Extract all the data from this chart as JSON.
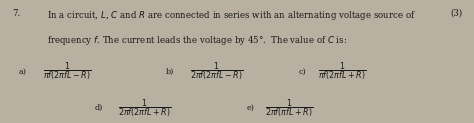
{
  "question_number": "7.",
  "question_line1": "In a circuit, $L$, $C$ and $R$ are connected in series with an alternating voltage source of",
  "question_line2": "frequency $f$. The current leads the voltage by 45°.  The value of $C$ is:",
  "marks": "(3)",
  "options": [
    {
      "label": "a)",
      "expr": "$\\dfrac{1}{\\pi f(2\\pi fL - R)}$"
    },
    {
      "label": "b)",
      "expr": "$\\dfrac{1}{2\\pi f(2\\pi fL - R)}$"
    },
    {
      "label": "c)",
      "expr": "$\\dfrac{1}{\\pi f(2\\pi fL + R)}$"
    },
    {
      "label": "d)",
      "expr": "$\\dfrac{1}{2\\pi f(2\\pi fL + R)}$"
    },
    {
      "label": "e)",
      "expr": "$\\dfrac{1}{2\\pi f(\\pi fL + R)}$"
    }
  ],
  "bg_color": "#b8b0a0",
  "text_color": "#1a1a1a",
  "fontsize_question": 6.2,
  "fontsize_options": 5.8,
  "figsize": [
    4.74,
    1.23
  ],
  "dpi": 100
}
